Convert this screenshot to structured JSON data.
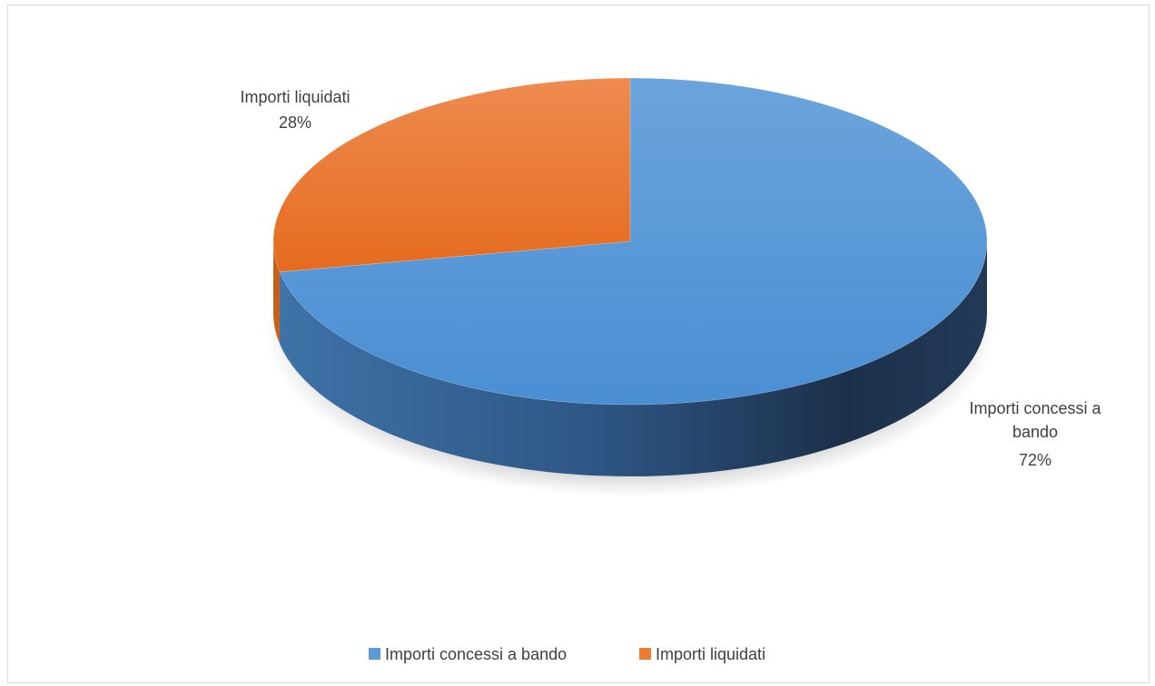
{
  "chart_data": {
    "type": "pie",
    "style": "3d",
    "title": "",
    "slices": [
      {
        "name": "Importi concessi a bando",
        "value": 72,
        "label_lines": [
          "Importi concessi a",
          "bando"
        ],
        "percent_label": "72%",
        "color": "#5B9BD5",
        "color_top": "#6FA3DA",
        "color_dark": "#1F3550"
      },
      {
        "name": "Importi liquidati",
        "value": 28,
        "label_lines": [
          "Importi liquidati"
        ],
        "percent_label": "28%",
        "color": "#ED7D31",
        "color_top": "#EE8A4D",
        "color_dark": "#C85F16"
      }
    ],
    "legend": {
      "position": "bottom",
      "entries": [
        "Importi concessi a bando",
        "Importi liquidati"
      ]
    }
  }
}
